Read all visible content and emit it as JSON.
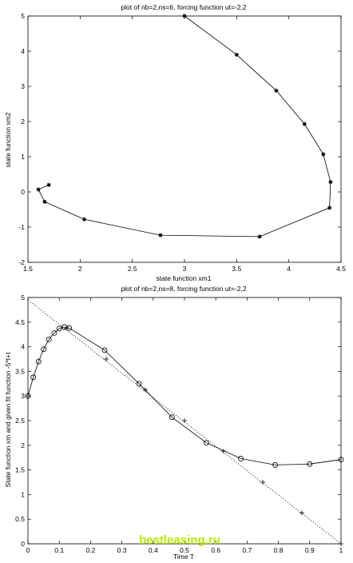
{
  "chart_data": [
    {
      "type": "line",
      "title": "plot of nb=2,ns=6, forcing function ut=-2,2",
      "xlabel": "state function xm1",
      "ylabel": "state function xm2",
      "xlim": [
        1.5,
        4.5
      ],
      "ylim": [
        -2,
        5
      ],
      "xticks": [
        "1.5",
        "2",
        "2.5",
        "3",
        "3.5",
        "4",
        "4.5"
      ],
      "yticks": [
        "-2",
        "-1",
        "0",
        "1",
        "2",
        "3",
        "4",
        "5"
      ],
      "grid": false,
      "series": [
        {
          "marker": "asterisk",
          "x": [
            3.0,
            3.5,
            3.88,
            4.15,
            4.33,
            4.4,
            4.39,
            3.72,
            2.77,
            2.04,
            1.66,
            1.6,
            1.7
          ],
          "y": [
            5.0,
            3.9,
            2.88,
            1.93,
            1.07,
            0.28,
            -0.45,
            -1.27,
            -1.23,
            -0.78,
            -0.28,
            0.07,
            0.2
          ]
        }
      ]
    },
    {
      "type": "line",
      "title": "plot of nb=2,ns=8, forcing function ut=-2,2",
      "xlabel": "Time T",
      "ylabel": "State function xm and given fit function -5*t+t",
      "xlim": [
        0,
        1
      ],
      "ylim": [
        0,
        5
      ],
      "xticks": [
        "0",
        "0.1",
        "0.2",
        "0.3",
        "0.4",
        "0.5",
        "0.6",
        "0.7",
        "0.8",
        "0.9",
        "1"
      ],
      "yticks": [
        "0",
        "0.5",
        "1",
        "1.5",
        "2",
        "2.5",
        "3",
        "3.5",
        "4",
        "4.5",
        "5"
      ],
      "grid": false,
      "series": [
        {
          "marker": "circle",
          "x": [
            0.0,
            0.017,
            0.034,
            0.05,
            0.067,
            0.084,
            0.1,
            0.116,
            0.132,
            0.245,
            0.355,
            0.46,
            0.57,
            0.68,
            0.79,
            0.9,
            1.0
          ],
          "y": [
            3.0,
            3.38,
            3.7,
            3.95,
            4.15,
            4.28,
            4.37,
            4.4,
            4.38,
            3.93,
            3.25,
            2.57,
            2.05,
            1.73,
            1.6,
            1.62,
            1.71
          ]
        },
        {
          "marker": "plus",
          "x": [
            0.0,
            0.125,
            0.25,
            0.375,
            0.5,
            0.625,
            0.75,
            0.875,
            1.0
          ],
          "y": [
            3.0,
            4.38,
            3.75,
            3.13,
            2.5,
            1.88,
            1.25,
            0.63,
            0.0
          ]
        },
        {
          "style": "dotted",
          "x": [
            0,
            1
          ],
          "y": [
            4.95,
            0.0
          ]
        }
      ]
    }
  ],
  "watermark": "bestleasing.ru"
}
